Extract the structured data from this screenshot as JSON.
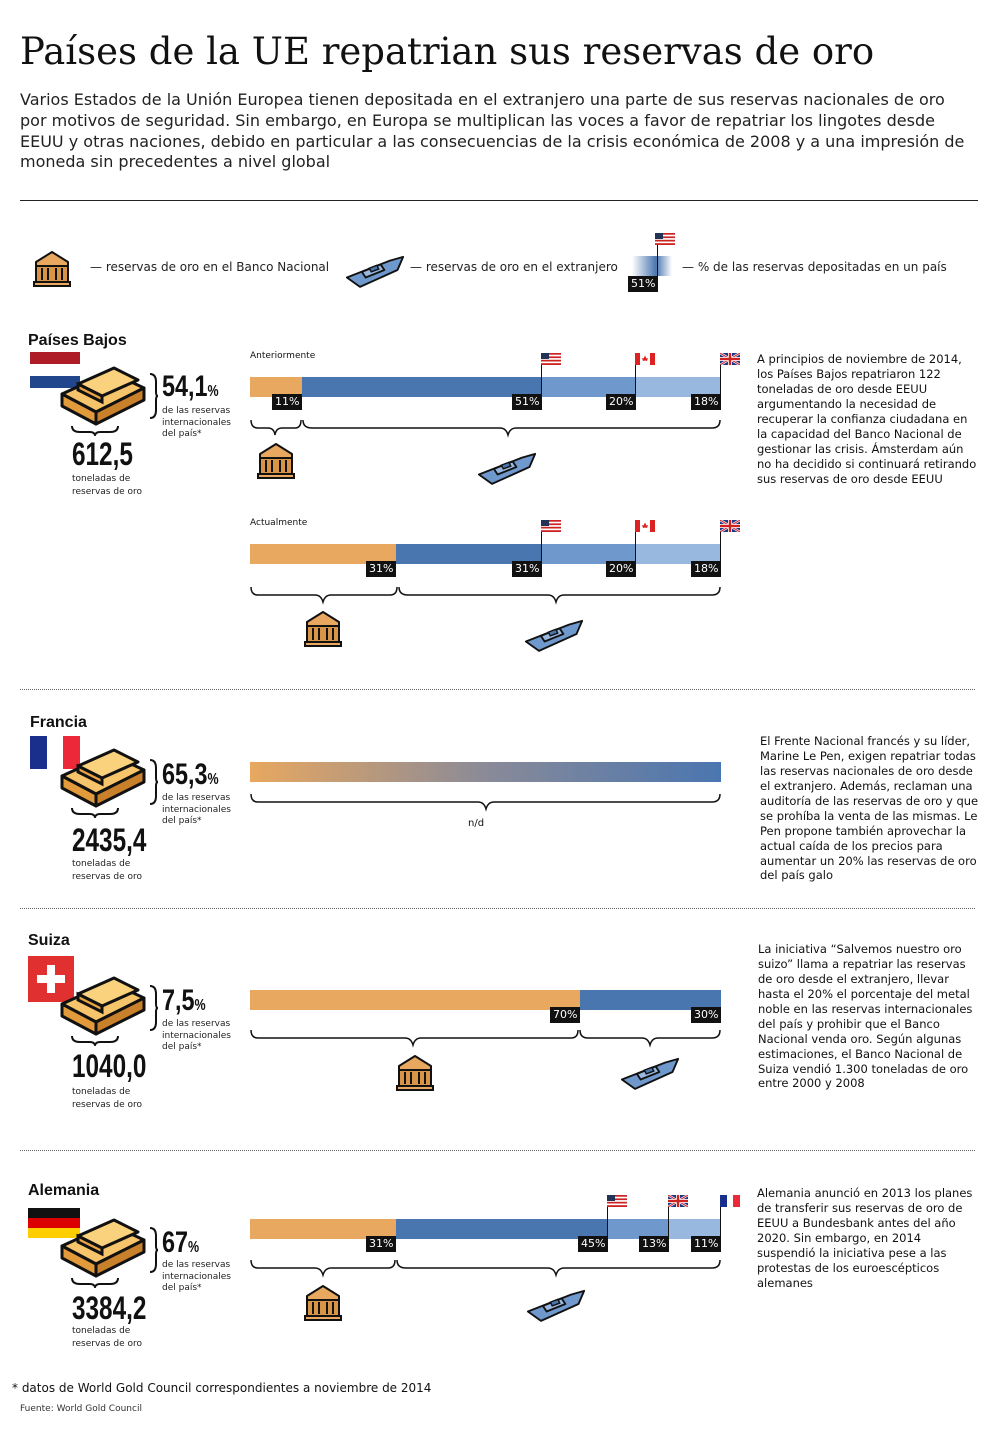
{
  "header": {
    "title": "Países de la UE repatrian sus reservas de oro",
    "intro": "Varios Estados de la Unión Europea tienen depositada en el extranjero una parte de sus reservas nacionales de oro por motivos de seguridad. Sin embargo, en Europa se multiplican las voces a favor de repatriar los lingotes desde EEUU y otras naciones, debido en particular a las consecuencias de la crisis económica de 2008 y a una impresión de moneda sin precedentes a nivel global"
  },
  "legend": {
    "national": "— reservas de oro en el Banco Nacional",
    "abroad": "— reservas de oro en el extranjero",
    "share": "— % de las reservas depositadas en un país",
    "sample_pct": "51%"
  },
  "colors": {
    "gold": "#e8a860",
    "abroad_dark": "#4a76b0",
    "abroad_mid": "#6f98cc",
    "abroad_light": "#99b8e0"
  },
  "countries": [
    {
      "name": "Países Bajos",
      "reserve_pct": "54,1",
      "reserve_unit": "%",
      "reserve_caption": "de las reservas internacionales del país*",
      "tons": "612,5",
      "tons_caption": "toneladas de reservas de oro",
      "before_label": "Anteriormente",
      "after_label": "Actualmente",
      "before": [
        {
          "holder": "national",
          "pct": 11,
          "label": "11%"
        },
        {
          "holder": "us-flag",
          "pct": 51,
          "label": "51%"
        },
        {
          "holder": "canada-flag",
          "pct": 20,
          "label": "20%"
        },
        {
          "holder": "uk-flag",
          "pct": 18,
          "label": "18%"
        }
      ],
      "after": [
        {
          "holder": "national",
          "pct": 31,
          "label": "31%"
        },
        {
          "holder": "us-flag",
          "pct": 31,
          "label": "31%"
        },
        {
          "holder": "canada-flag",
          "pct": 20,
          "label": "20%"
        },
        {
          "holder": "uk-flag",
          "pct": 18,
          "label": "18%"
        }
      ],
      "text": "A principios de noviembre de 2014, los Países Bajos repatriaron 122 toneladas de oro desde EEUU argumentando la necesidad de recuperar la confianza ciudadana en la capacidad del Banco Nacional de gestionar las crisis. Ámsterdam aún no ha decidido si continuará retirando sus reservas de oro desde EEUU"
    },
    {
      "name": "Francia",
      "reserve_pct": "65,3",
      "reserve_unit": "%",
      "reserve_caption": "de las reservas internacionales del país*",
      "tons": "2435,4",
      "tons_caption": "toneladas de reservas de oro",
      "na": "n/d",
      "text": "El Frente Nacional francés y su líder, Marine Le Pen, exigen repatriar todas las reservas nacionales de oro desde el extranjero. Además, reclaman una auditoría de las reservas de oro y que se prohíba la venta de las mismas. Le Pen propone también aprovechar la actual caída de los precios para aumentar un 20% las reservas de oro del país galo"
    },
    {
      "name": "Suiza",
      "reserve_pct": "7,5",
      "reserve_unit": "%",
      "reserve_caption": "de las reservas internacionales del país*",
      "tons": "1040,0",
      "tons_caption": "toneladas de reservas de oro",
      "split": [
        {
          "holder": "national",
          "pct": 70,
          "label": "70%"
        },
        {
          "holder": "abroad",
          "pct": 30,
          "label": "30%"
        }
      ],
      "text": "La iniciativa “Salvemos nuestro oro suizo” llama a repatriar las reservas de oro desde el extranjero, llevar hasta el 20% el porcentaje del metal noble en las reservas internacionales del país y prohibir que el Banco Nacional venda oro. Según algunas estimaciones, el Banco Nacional de Suiza vendió 1.300 toneladas de oro entre 2000 y 2008"
    },
    {
      "name": "Alemania",
      "reserve_pct": "67",
      "reserve_unit": "%",
      "reserve_caption": "de las reservas internacionales del país*",
      "tons": "3384,2",
      "tons_caption": "toneladas de reservas de oro",
      "split": [
        {
          "holder": "national",
          "pct": 31,
          "label": "31%"
        },
        {
          "holder": "us-flag",
          "pct": 45,
          "label": "45%"
        },
        {
          "holder": "uk-flag",
          "pct": 13,
          "label": "13%"
        },
        {
          "holder": "france-flag",
          "pct": 11,
          "label": "11%"
        }
      ],
      "text": "Alemania anunció en 2013 los planes de transferir sus reservas de oro de EEUU a Bundesbank antes del año 2020. Sin embargo, en 2014 suspendió la iniciativa pese a las protestas de los euroescépticos alemanes"
    }
  ],
  "footer": {
    "footnote": "* datos de World Gold Council correspondientes a noviembre de 2014",
    "source": "Fuente: World Gold Council"
  }
}
